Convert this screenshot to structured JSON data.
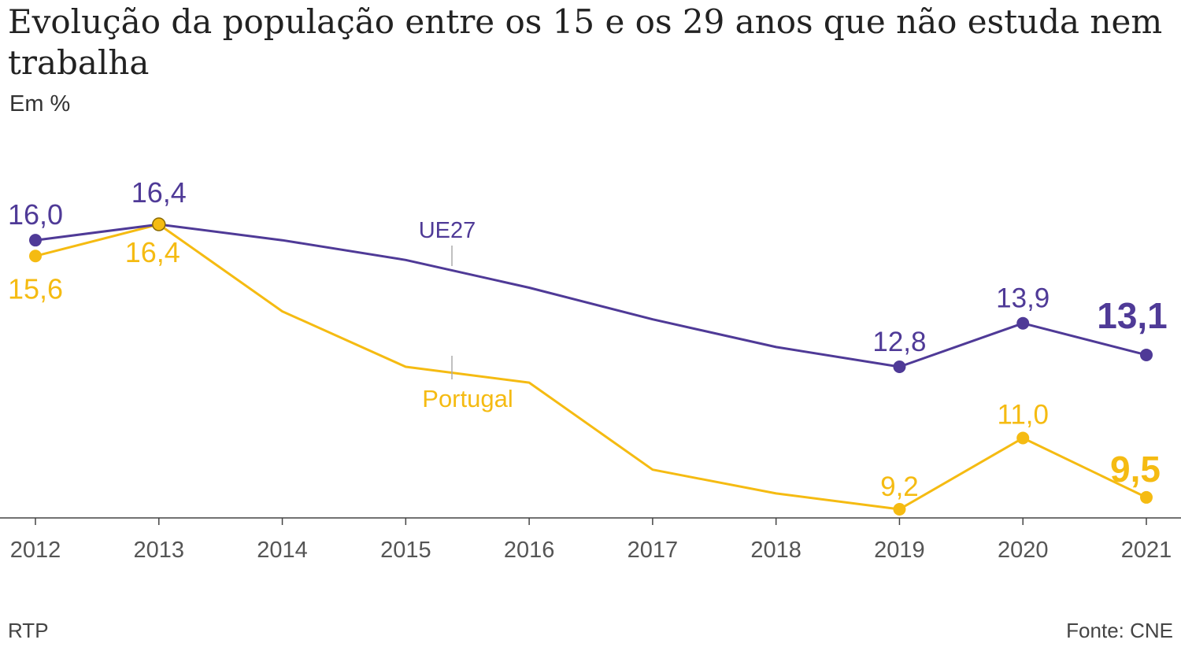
{
  "chart_data": {
    "type": "line",
    "title": "Evolução da população entre os 15 e os 29 anos que não estuda nem trabalha",
    "subtitle": "Em %",
    "x": [
      2012,
      2013,
      2014,
      2015,
      2016,
      2017,
      2018,
      2019,
      2020,
      2021
    ],
    "tick_labels": [
      "2012",
      "2013",
      "2014",
      "2015",
      "2016",
      "2017",
      "2018",
      "2019",
      "2020",
      "2021"
    ],
    "ylim": [
      8.5,
      17.5
    ],
    "grid": false,
    "series": [
      {
        "name": "UE27",
        "color": "#4f3a97",
        "values": [
          16.0,
          16.4,
          16.0,
          15.5,
          14.8,
          14.0,
          13.3,
          12.8,
          13.9,
          13.1
        ],
        "labels": [
          {
            "index": 0,
            "text": "16,0"
          },
          {
            "index": 1,
            "text": "16,4"
          },
          {
            "index": 7,
            "text": "12,8"
          },
          {
            "index": 8,
            "text": "13,9"
          },
          {
            "index": 9,
            "text": "13,1"
          }
        ]
      },
      {
        "name": "Portugal",
        "color": "#f5bb12",
        "values": [
          15.6,
          16.4,
          14.2,
          12.8,
          12.4,
          10.2,
          9.6,
          9.2,
          11.0,
          9.5
        ],
        "labels": [
          {
            "index": 0,
            "text": "15,6"
          },
          {
            "index": 1,
            "text": "16,4"
          },
          {
            "index": 7,
            "text": "9,2"
          },
          {
            "index": 8,
            "text": "11,0"
          },
          {
            "index": 9,
            "text": "9,5"
          }
        ]
      }
    ]
  },
  "footer": {
    "credit": "RTP",
    "source": "Fonte: CNE"
  }
}
